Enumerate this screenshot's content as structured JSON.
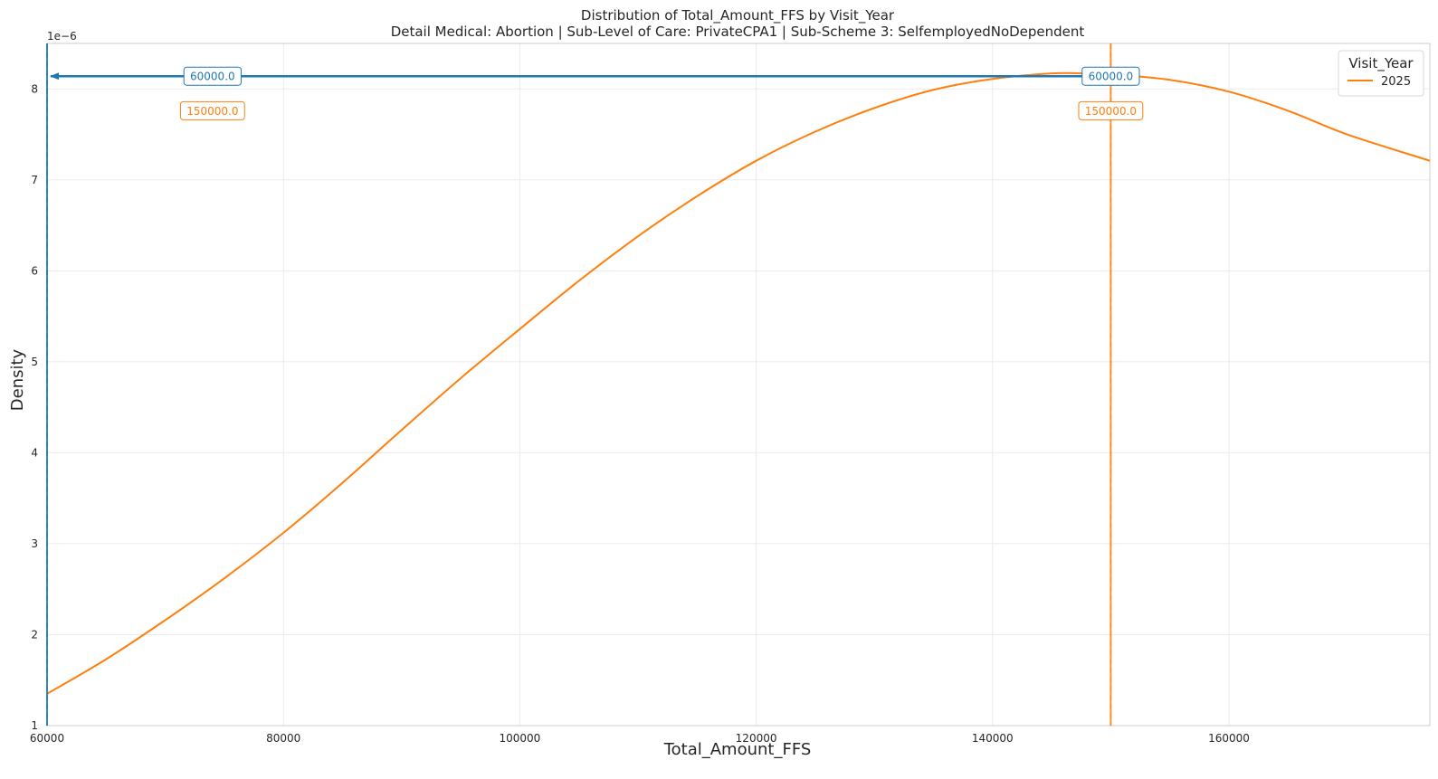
{
  "chart_data": {
    "type": "line",
    "title": "Distribution of Total_Amount_FFS by Visit_Year",
    "subtitle": "Detail Medical: Abortion | Sub-Level of Care: PrivateCPA1 | Sub-Scheme 3: SelfemployedNoDependent",
    "xlabel": "Total_Amount_FFS",
    "ylabel": "Density",
    "y_offset_label": "1e−6",
    "xlim": [
      60000,
      177000
    ],
    "ylim": [
      1,
      8.5
    ],
    "y_scale_exponent": -6,
    "x_ticks": [
      "60000",
      "80000",
      "100000",
      "120000",
      "140000",
      "160000"
    ],
    "x_tick_values": [
      60000,
      80000,
      100000,
      120000,
      140000,
      160000
    ],
    "y_ticks": [
      "1",
      "2",
      "3",
      "4",
      "5",
      "6",
      "7",
      "8"
    ],
    "y_tick_values": [
      1,
      2,
      3,
      4,
      5,
      6,
      7,
      8
    ],
    "grid": true,
    "legend": {
      "title": "Visit_Year",
      "placement": "top-right",
      "entries": [
        {
          "label": "2025",
          "color": "#ff7f0e"
        }
      ]
    },
    "series": [
      {
        "name": "2025",
        "color": "#ff7f0e",
        "x": [
          60000,
          65000,
          70000,
          75000,
          80000,
          85000,
          90000,
          95000,
          100000,
          105000,
          110000,
          115000,
          120000,
          125000,
          130000,
          135000,
          140000,
          145000,
          148000,
          150000,
          155000,
          160000,
          165000,
          170000,
          177000
        ],
        "y": [
          1.35,
          1.73,
          2.16,
          2.62,
          3.12,
          3.67,
          4.25,
          4.82,
          5.36,
          5.89,
          6.38,
          6.82,
          7.21,
          7.53,
          7.79,
          7.99,
          8.11,
          8.17,
          8.17,
          8.16,
          8.1,
          7.97,
          7.76,
          7.5,
          7.21
        ]
      }
    ],
    "vertical_lines": [
      {
        "x": 60000,
        "color": "#1f77b4",
        "style": "dashed"
      },
      {
        "x": 150000,
        "color": "#ff7f0e",
        "style": "dashed"
      }
    ],
    "annotations": [
      {
        "from_label": "60000.0",
        "to_label": "60000.0",
        "y": 8.14,
        "label_x_from": 74000,
        "label_x_to": 150000,
        "arrow_to_x": 60000,
        "color": "#1f77b4"
      },
      {
        "from_label": "150000.0",
        "to_label": "150000.0",
        "y": 7.76,
        "label_x_from": 74000,
        "label_x_to": 150000,
        "arrow_to_x": 150000,
        "color": "#ff7f0e"
      }
    ]
  }
}
